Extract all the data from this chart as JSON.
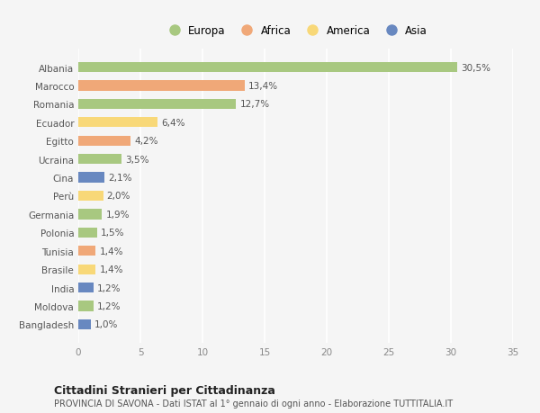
{
  "countries": [
    "Albania",
    "Marocco",
    "Romania",
    "Ecuador",
    "Egitto",
    "Ucraina",
    "Cina",
    "Perù",
    "Germania",
    "Polonia",
    "Tunisia",
    "Brasile",
    "India",
    "Moldova",
    "Bangladesh"
  ],
  "values": [
    30.5,
    13.4,
    12.7,
    6.4,
    4.2,
    3.5,
    2.1,
    2.0,
    1.9,
    1.5,
    1.4,
    1.4,
    1.2,
    1.2,
    1.0
  ],
  "labels": [
    "30,5%",
    "13,4%",
    "12,7%",
    "6,4%",
    "4,2%",
    "3,5%",
    "2,1%",
    "2,0%",
    "1,9%",
    "1,5%",
    "1,4%",
    "1,4%",
    "1,2%",
    "1,2%",
    "1,0%"
  ],
  "colors": [
    "#a8c880",
    "#f0a878",
    "#a8c880",
    "#f8d878",
    "#f0a878",
    "#a8c880",
    "#6888c0",
    "#f8d878",
    "#a8c880",
    "#a8c880",
    "#f0a878",
    "#f8d878",
    "#6888c0",
    "#a8c880",
    "#6888c0"
  ],
  "legend_labels": [
    "Europa",
    "Africa",
    "America",
    "Asia"
  ],
  "legend_colors": [
    "#a8c880",
    "#f0a878",
    "#f8d878",
    "#6888c0"
  ],
  "xlim": [
    0,
    35
  ],
  "xticks": [
    0,
    5,
    10,
    15,
    20,
    25,
    30,
    35
  ],
  "title": "Cittadini Stranieri per Cittadinanza",
  "subtitle": "PROVINCIA DI SAVONA - Dati ISTAT al 1° gennaio di ogni anno - Elaborazione TUTTITALIA.IT",
  "bg_color": "#f5f5f5",
  "bar_height": 0.55,
  "grid_color": "#ffffff",
  "label_fontsize": 7.5,
  "ytick_fontsize": 7.5,
  "xtick_fontsize": 7.5,
  "legend_fontsize": 8.5,
  "title_fontsize": 9,
  "subtitle_fontsize": 7
}
